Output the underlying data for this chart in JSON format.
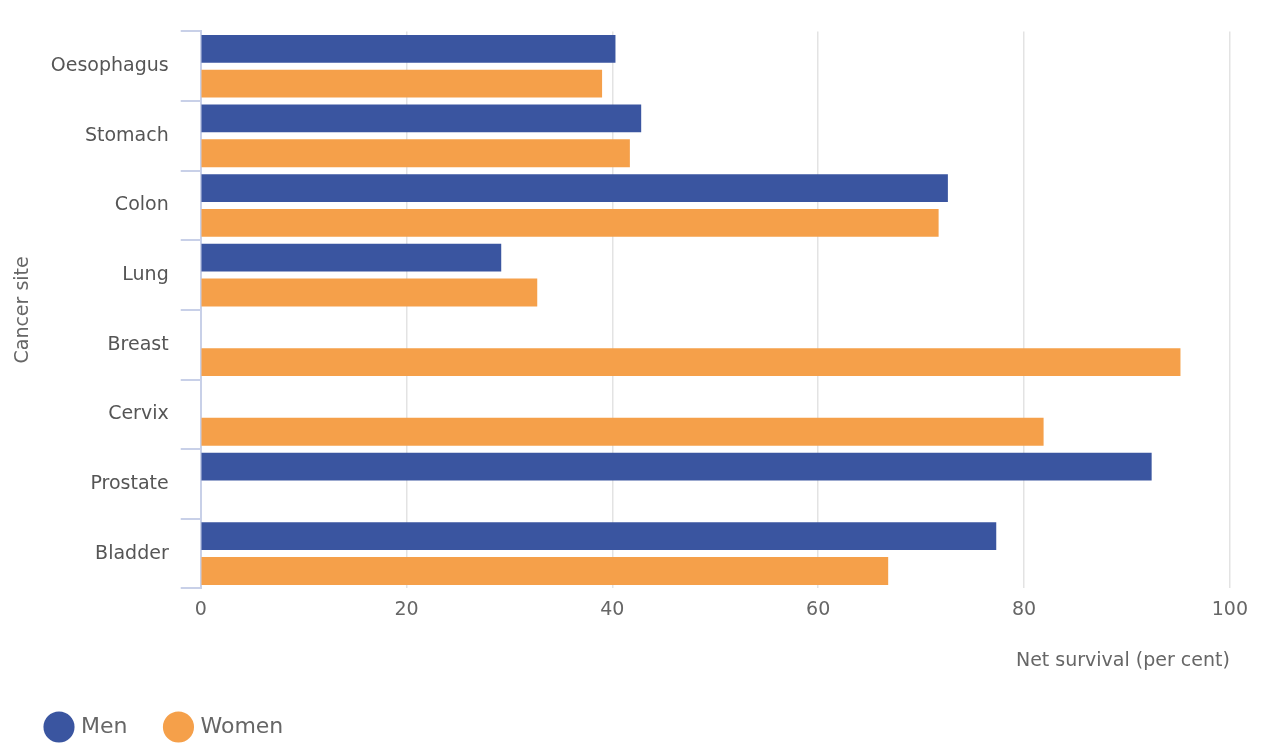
{
  "chart_data": {
    "type": "bar",
    "orientation": "horizontal",
    "xlabel": "Net survival (per cent)",
    "ylabel": "Cancer site",
    "categories": [
      "Oesophagus",
      "Stomach",
      "Colon",
      "Lung",
      "Breast",
      "Cervix",
      "Prostate",
      "Bladder"
    ],
    "series": [
      {
        "name": "Men",
        "color": "#3a55a0",
        "values": [
          40.3,
          42.8,
          72.6,
          29.2,
          null,
          null,
          92.4,
          77.3
        ]
      },
      {
        "name": "Women",
        "color": "#f5a04a",
        "values": [
          39.0,
          41.7,
          71.7,
          32.7,
          95.2,
          81.9,
          null,
          66.8
        ]
      }
    ],
    "xlim": [
      0,
      100
    ],
    "xticks": [
      0,
      20,
      40,
      60,
      80,
      100
    ],
    "grid": "x",
    "legend": "bottom left"
  }
}
